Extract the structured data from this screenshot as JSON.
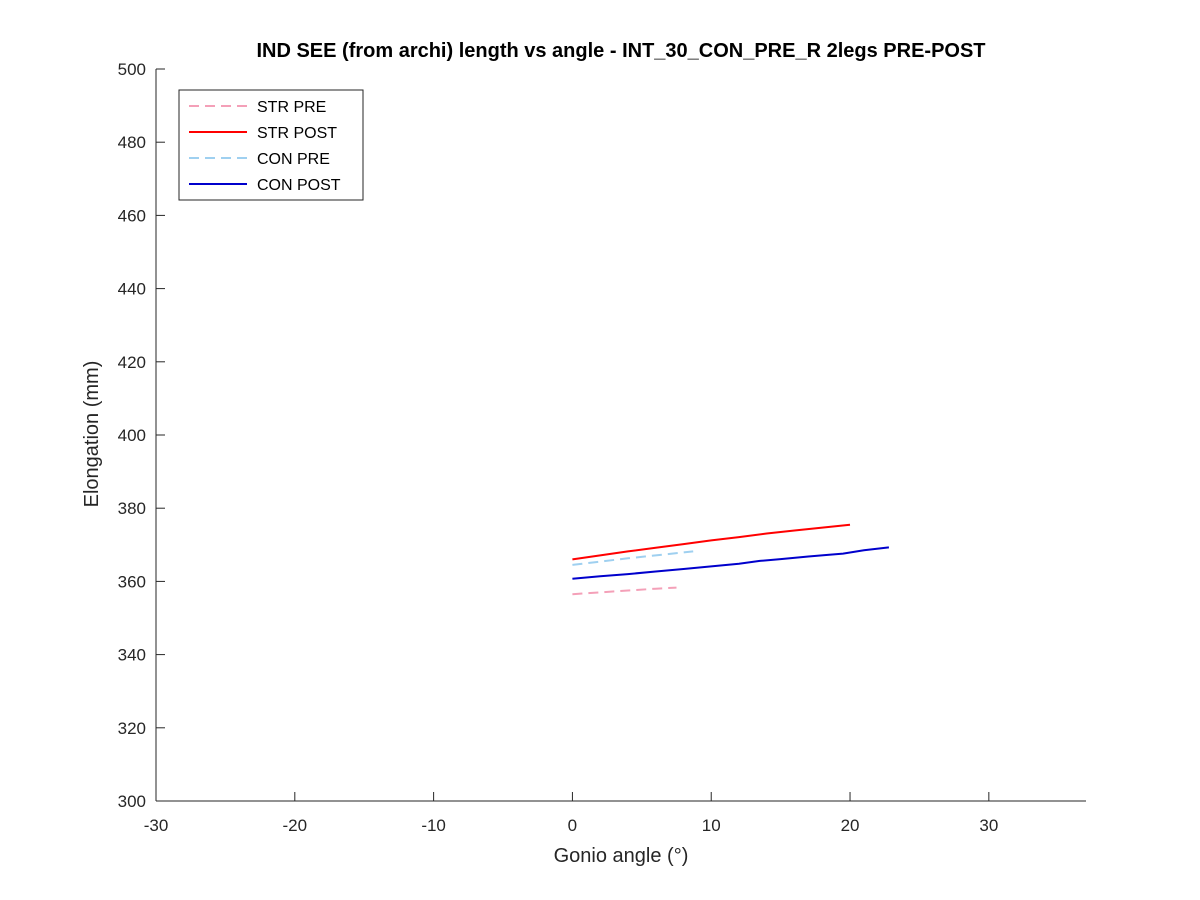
{
  "chart_data": {
    "type": "line",
    "title": "IND SEE (from archi) length vs angle - INT_30_CON_PRE_R 2legs PRE-POST",
    "xlabel": "Gonio angle (°)",
    "ylabel": "Elongation (mm)",
    "xlim": [
      -30,
      37
    ],
    "ylim": [
      300,
      500
    ],
    "x_ticks": [
      -30,
      -20,
      -10,
      0,
      10,
      20,
      30
    ],
    "y_ticks": [
      300,
      320,
      340,
      360,
      380,
      400,
      420,
      440,
      460,
      480,
      500
    ],
    "grid": false,
    "legend_position": "top-left",
    "series": [
      {
        "name": "STR PRE",
        "color": "#f4a0b8",
        "dash": "dashed",
        "points": [
          [
            0,
            356.5
          ],
          [
            2,
            357.0
          ],
          [
            4,
            357.5
          ],
          [
            6,
            358.0
          ],
          [
            7.5,
            358.3
          ]
        ]
      },
      {
        "name": "STR POST",
        "color": "#ff0000",
        "dash": "solid",
        "points": [
          [
            0,
            366.0
          ],
          [
            2,
            367.1
          ],
          [
            4,
            368.2
          ],
          [
            6,
            369.2
          ],
          [
            8,
            370.2
          ],
          [
            10,
            371.2
          ],
          [
            12,
            372.1
          ],
          [
            14,
            373.1
          ],
          [
            16,
            373.9
          ],
          [
            18,
            374.7
          ],
          [
            20,
            375.5
          ]
        ]
      },
      {
        "name": "CON PRE",
        "color": "#9fd0f0",
        "dash": "dashed",
        "points": [
          [
            0,
            364.5
          ],
          [
            2,
            365.4
          ],
          [
            4,
            366.3
          ],
          [
            6,
            367.1
          ],
          [
            8.7,
            368.2
          ]
        ]
      },
      {
        "name": "CON POST",
        "color": "#0000cc",
        "dash": "solid",
        "points": [
          [
            0,
            360.7
          ],
          [
            2,
            361.4
          ],
          [
            4,
            362.0
          ],
          [
            6,
            362.7
          ],
          [
            8,
            363.4
          ],
          [
            10,
            364.1
          ],
          [
            12,
            364.8
          ],
          [
            13.5,
            365.6
          ],
          [
            15,
            366.1
          ],
          [
            17,
            366.8
          ],
          [
            18.5,
            367.3
          ],
          [
            19.5,
            367.6
          ],
          [
            21,
            368.5
          ],
          [
            22.8,
            369.3
          ]
        ]
      }
    ]
  }
}
